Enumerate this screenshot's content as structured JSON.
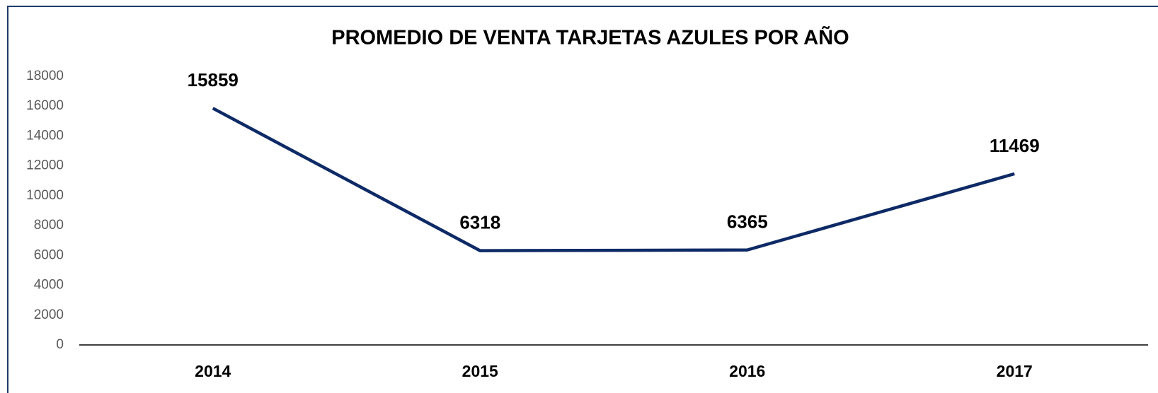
{
  "chart_data": {
    "type": "line",
    "title": "PROMEDIO DE VENTA TARJETAS AZULES POR AÑO",
    "categories": [
      "2014",
      "2015",
      "2016",
      "2017"
    ],
    "values": [
      15859,
      6318,
      6365,
      11469
    ],
    "color": "#0e2a66",
    "ylim": [
      0,
      18000
    ],
    "yticks": [
      0,
      2000,
      4000,
      6000,
      8000,
      10000,
      12000,
      14000,
      16000,
      18000
    ],
    "grid": false
  }
}
